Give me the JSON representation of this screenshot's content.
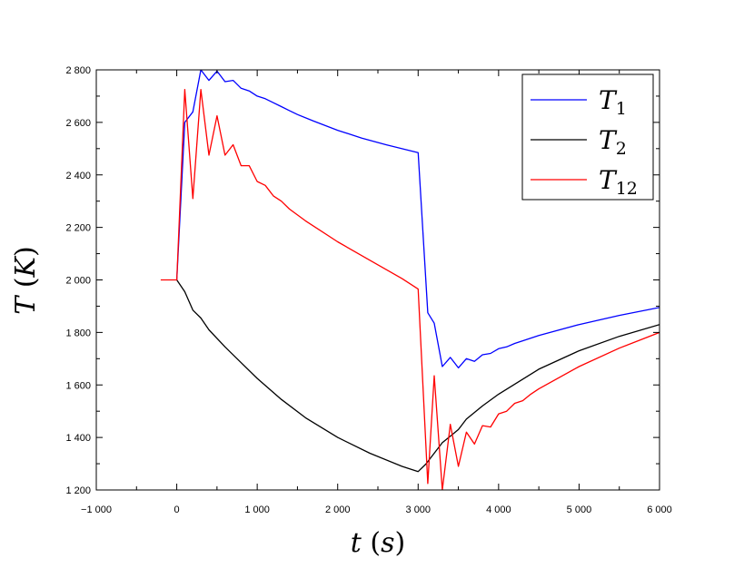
{
  "chart_data": {
    "type": "line",
    "xlabel": "t (s)",
    "ylabel": "T (K)",
    "xlim": [
      -1000,
      6000
    ],
    "ylim": [
      1200,
      2800
    ],
    "x_ticks": [
      -1000,
      0,
      1000,
      2000,
      3000,
      4000,
      5000,
      6000
    ],
    "x_tick_labels": [
      "−1 000",
      "0",
      "1 000",
      "2 000",
      "3 000",
      "4 000",
      "5 000",
      "6 000"
    ],
    "y_ticks": [
      1200,
      1400,
      1600,
      1800,
      2000,
      2200,
      2400,
      2600,
      2800
    ],
    "y_tick_labels": [
      "1 200",
      "1 400",
      "1 600",
      "1 800",
      "2 000",
      "2 200",
      "2 400",
      "2 600",
      "2 800"
    ],
    "grid": false,
    "legend_position": "top-right",
    "series": [
      {
        "name": "T_1",
        "label_main": "T",
        "label_sub": "1",
        "color": "#0000ff",
        "points": [
          [
            0,
            2000
          ],
          [
            100,
            2600
          ],
          [
            200,
            2640
          ],
          [
            300,
            2800
          ],
          [
            400,
            2760
          ],
          [
            500,
            2795
          ],
          [
            600,
            2755
          ],
          [
            700,
            2760
          ],
          [
            800,
            2730
          ],
          [
            900,
            2720
          ],
          [
            1000,
            2700
          ],
          [
            1100,
            2690
          ],
          [
            1200,
            2675
          ],
          [
            1300,
            2660
          ],
          [
            1400,
            2645
          ],
          [
            1500,
            2630
          ],
          [
            1700,
            2605
          ],
          [
            2000,
            2570
          ],
          [
            2300,
            2540
          ],
          [
            2600,
            2515
          ],
          [
            3000,
            2485
          ],
          [
            3120,
            1875
          ],
          [
            3200,
            1835
          ],
          [
            3300,
            1670
          ],
          [
            3400,
            1705
          ],
          [
            3500,
            1665
          ],
          [
            3600,
            1700
          ],
          [
            3700,
            1690
          ],
          [
            3800,
            1715
          ],
          [
            3900,
            1720
          ],
          [
            4000,
            1738
          ],
          [
            4100,
            1745
          ],
          [
            4200,
            1758
          ],
          [
            4300,
            1768
          ],
          [
            4500,
            1788
          ],
          [
            5000,
            1830
          ],
          [
            5500,
            1865
          ],
          [
            6000,
            1895
          ]
        ]
      },
      {
        "name": "T_2",
        "label_main": "T",
        "label_sub": "2",
        "color": "#000000",
        "points": [
          [
            0,
            2000
          ],
          [
            100,
            1955
          ],
          [
            200,
            1885
          ],
          [
            300,
            1855
          ],
          [
            400,
            1810
          ],
          [
            600,
            1745
          ],
          [
            800,
            1685
          ],
          [
            1000,
            1625
          ],
          [
            1300,
            1545
          ],
          [
            1600,
            1475
          ],
          [
            2000,
            1400
          ],
          [
            2400,
            1340
          ],
          [
            2800,
            1290
          ],
          [
            3000,
            1270
          ],
          [
            3100,
            1300
          ],
          [
            3200,
            1340
          ],
          [
            3300,
            1380
          ],
          [
            3400,
            1405
          ],
          [
            3500,
            1430
          ],
          [
            3600,
            1470
          ],
          [
            3800,
            1520
          ],
          [
            4000,
            1565
          ],
          [
            4500,
            1660
          ],
          [
            5000,
            1730
          ],
          [
            5500,
            1785
          ],
          [
            6000,
            1830
          ]
        ]
      },
      {
        "name": "T_12",
        "label_main": "T",
        "label_sub": "12",
        "color": "#ff0000",
        "points": [
          [
            -200,
            2000
          ],
          [
            0,
            2000
          ],
          [
            100,
            2725
          ],
          [
            200,
            2310
          ],
          [
            300,
            2725
          ],
          [
            400,
            2475
          ],
          [
            500,
            2625
          ],
          [
            600,
            2475
          ],
          [
            700,
            2515
          ],
          [
            800,
            2435
          ],
          [
            900,
            2435
          ],
          [
            1000,
            2375
          ],
          [
            1100,
            2360
          ],
          [
            1200,
            2320
          ],
          [
            1300,
            2300
          ],
          [
            1400,
            2270
          ],
          [
            1600,
            2225
          ],
          [
            2000,
            2145
          ],
          [
            2400,
            2075
          ],
          [
            2800,
            2005
          ],
          [
            3000,
            1965
          ],
          [
            3120,
            1225
          ],
          [
            3200,
            1635
          ],
          [
            3300,
            1200
          ],
          [
            3400,
            1450
          ],
          [
            3500,
            1290
          ],
          [
            3600,
            1420
          ],
          [
            3700,
            1375
          ],
          [
            3800,
            1445
          ],
          [
            3900,
            1440
          ],
          [
            4000,
            1490
          ],
          [
            4100,
            1500
          ],
          [
            4200,
            1530
          ],
          [
            4300,
            1540
          ],
          [
            4400,
            1565
          ],
          [
            4500,
            1585
          ],
          [
            5000,
            1670
          ],
          [
            5500,
            1740
          ],
          [
            6000,
            1800
          ]
        ]
      }
    ]
  }
}
